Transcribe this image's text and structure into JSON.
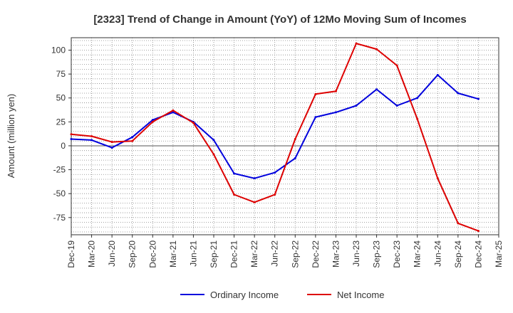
{
  "chart_data": {
    "type": "line",
    "title": "[2323]  Trend of Change in Amount (YoY) of 12Mo Moving Sum of Incomes",
    "xlabel": "",
    "ylabel": "Amount (million yen)",
    "categories": [
      "Dec-19",
      "Mar-20",
      "Jun-20",
      "Sep-20",
      "Dec-20",
      "Mar-21",
      "Jun-21",
      "Sep-21",
      "Dec-21",
      "Mar-22",
      "Jun-22",
      "Sep-22",
      "Dec-22",
      "Mar-23",
      "Jun-23",
      "Sep-23",
      "Dec-23",
      "Mar-24",
      "Jun-24",
      "Sep-24",
      "Dec-24",
      "Mar-25"
    ],
    "ylim": [
      -93,
      113
    ],
    "yticks": [
      100,
      75,
      50,
      25,
      0,
      -25,
      -50,
      -75
    ],
    "grid": true,
    "legend_position": "bottom",
    "series": [
      {
        "name": "Ordinary Income",
        "color": "#0000dd",
        "values": [
          7,
          6,
          -2,
          9,
          27,
          35,
          25,
          6,
          -29,
          -34,
          -28,
          -13,
          30,
          35,
          42,
          59,
          42,
          50,
          74,
          55,
          49,
          null
        ]
      },
      {
        "name": "Net Income",
        "color": "#dd0000",
        "values": [
          12,
          10,
          4,
          5,
          25,
          37,
          24,
          -9,
          -51,
          -59,
          -51,
          7,
          54,
          57,
          107,
          101,
          84,
          28,
          -34,
          -81,
          -89,
          null
        ]
      }
    ]
  }
}
